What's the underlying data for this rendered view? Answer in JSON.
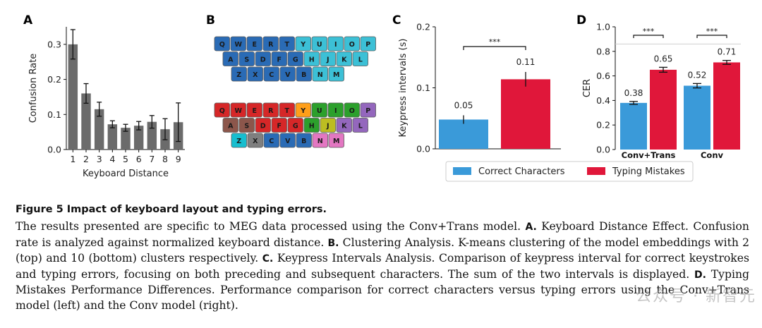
{
  "panels": {
    "a": {
      "letter": "A"
    },
    "b": {
      "letter": "B"
    },
    "c": {
      "letter": "C"
    },
    "d": {
      "letter": "D"
    }
  },
  "chart_data": [
    {
      "type": "bar",
      "panel": "A",
      "categories": [
        "1",
        "2",
        "3",
        "4",
        "5",
        "6",
        "7",
        "8",
        "9"
      ],
      "values": [
        0.3,
        0.16,
        0.115,
        0.072,
        0.062,
        0.068,
        0.079,
        0.058,
        0.078
      ],
      "errors": [
        0.042,
        0.028,
        0.02,
        0.01,
        0.01,
        0.012,
        0.018,
        0.03,
        0.055
      ],
      "xlabel": "Keyboard Distance",
      "ylabel": "Confusion Rate",
      "ylim": [
        0,
        0.35
      ],
      "yticks": [
        0.0,
        0.1,
        0.2,
        0.3
      ],
      "ytick_labels": [
        "0.0",
        "0.1",
        "0.2",
        "0.3"
      ],
      "color": "#6b6b6b",
      "grid": false
    },
    {
      "type": "bar",
      "panel": "C",
      "categories": [
        "Correct Characters",
        "Typing Mistakes"
      ],
      "values": [
        0.048,
        0.114
      ],
      "errors": [
        0.007,
        0.012
      ],
      "data_labels": [
        "0.05",
        "0.11"
      ],
      "ylabel": "Keypress intervals (s)",
      "ylim": [
        0,
        0.2
      ],
      "yticks": [
        0.0,
        0.1,
        0.2
      ],
      "ytick_labels": [
        "0.0",
        "0.1",
        "0.2"
      ],
      "colors": [
        "#3a9ad9",
        "#e0173a"
      ],
      "significance": "***",
      "grid": false
    },
    {
      "type": "bar",
      "panel": "D",
      "categories": [
        "Conv+Trans",
        "Conv"
      ],
      "series": [
        {
          "name": "Correct Characters",
          "values": [
            0.38,
            0.52
          ],
          "errors": [
            0.012,
            0.018
          ],
          "data_labels": [
            "0.38",
            "0.52"
          ],
          "color": "#3a9ad9"
        },
        {
          "name": "Typing Mistakes",
          "values": [
            0.65,
            0.71
          ],
          "errors": [
            0.02,
            0.016
          ],
          "data_labels": [
            "0.65",
            "0.71"
          ],
          "color": "#e0173a"
        }
      ],
      "ylabel": "CER",
      "ylim": [
        0,
        1.0
      ],
      "yticks": [
        0.0,
        0.2,
        0.4,
        0.6,
        0.8,
        1.0
      ],
      "ytick_labels": [
        "0.0",
        "0.2",
        "0.4",
        "0.6",
        "0.8",
        "1.0"
      ],
      "significance": [
        "***",
        "***"
      ],
      "reference_line": 0.86,
      "grid": false
    }
  ],
  "legend": {
    "placement": "bottom-center",
    "items": [
      {
        "label": "Correct Characters",
        "color": "#3a9ad9"
      },
      {
        "label": "Typing Mistakes",
        "color": "#e0173a"
      }
    ]
  },
  "keyboard": {
    "top": [
      [
        {
          "k": "Q",
          "c": "#2a6bb5"
        },
        {
          "k": "W",
          "c": "#2a6bb5"
        },
        {
          "k": "E",
          "c": "#2a6bb5"
        },
        {
          "k": "R",
          "c": "#2a6bb5"
        },
        {
          "k": "T",
          "c": "#2a6bb5"
        },
        {
          "k": "Y",
          "c": "#3cc0d6"
        },
        {
          "k": "U",
          "c": "#3cc0d6"
        },
        {
          "k": "I",
          "c": "#3cc0d6"
        },
        {
          "k": "O",
          "c": "#3cc0d6"
        },
        {
          "k": "P",
          "c": "#3cc0d6"
        }
      ],
      [
        {
          "k": "A",
          "c": "#2a6bb5"
        },
        {
          "k": "S",
          "c": "#2a6bb5"
        },
        {
          "k": "D",
          "c": "#2a6bb5"
        },
        {
          "k": "F",
          "c": "#2a6bb5"
        },
        {
          "k": "G",
          "c": "#2a6bb5"
        },
        {
          "k": "H",
          "c": "#3cc0d6"
        },
        {
          "k": "J",
          "c": "#3cc0d6"
        },
        {
          "k": "K",
          "c": "#3cc0d6"
        },
        {
          "k": "L",
          "c": "#3cc0d6"
        }
      ],
      [
        {
          "k": "Z",
          "c": "#2a6bb5"
        },
        {
          "k": "X",
          "c": "#2a6bb5"
        },
        {
          "k": "C",
          "c": "#2a6bb5"
        },
        {
          "k": "V",
          "c": "#2a6bb5"
        },
        {
          "k": "B",
          "c": "#2a6bb5"
        },
        {
          "k": "N",
          "c": "#3cc0d6"
        },
        {
          "k": "M",
          "c": "#3cc0d6"
        }
      ]
    ],
    "bottom": [
      [
        {
          "k": "Q",
          "c": "#d62728"
        },
        {
          "k": "W",
          "c": "#d62728"
        },
        {
          "k": "E",
          "c": "#d62728"
        },
        {
          "k": "R",
          "c": "#d62728"
        },
        {
          "k": "T",
          "c": "#d62728"
        },
        {
          "k": "Y",
          "c": "#ff9f1a"
        },
        {
          "k": "U",
          "c": "#2ca02c"
        },
        {
          "k": "I",
          "c": "#2ca02c"
        },
        {
          "k": "O",
          "c": "#2ca02c"
        },
        {
          "k": "P",
          "c": "#9467bd"
        }
      ],
      [
        {
          "k": "A",
          "c": "#8c564b"
        },
        {
          "k": "S",
          "c": "#8c564b"
        },
        {
          "k": "D",
          "c": "#d62728"
        },
        {
          "k": "F",
          "c": "#d62728"
        },
        {
          "k": "G",
          "c": "#d62728"
        },
        {
          "k": "H",
          "c": "#2ca02c"
        },
        {
          "k": "J",
          "c": "#bcbd22"
        },
        {
          "k": "K",
          "c": "#9467bd"
        },
        {
          "k": "L",
          "c": "#9467bd"
        }
      ],
      [
        {
          "k": "Z",
          "c": "#17becf"
        },
        {
          "k": "X",
          "c": "#7f7f7f"
        },
        {
          "k": "C",
          "c": "#2a6bb5"
        },
        {
          "k": "V",
          "c": "#2a6bb5"
        },
        {
          "k": "B",
          "c": "#2a6bb5"
        },
        {
          "k": "N",
          "c": "#e377c2"
        },
        {
          "k": "M",
          "c": "#e377c2"
        }
      ]
    ]
  },
  "caption": {
    "title": "Figure 5   Impact of keyboard layout and typing errors.",
    "intro": "The results presented are specific to MEG data processed using the Conv+Trans model.",
    "a_label": "A.",
    "a_text": "Keyboard Distance Effect. Confusion rate is analyzed against normalized keyboard distance.",
    "b_label": "B.",
    "b_text": "Clustering Analysis. K-means clustering of the model embeddings with 2 (top) and 10 (bottom) clusters respectively.",
    "c_label": "C.",
    "c_text": "Keypress Intervals Analysis. Comparison of keypress interval for correct keystrokes and typing errors, focusing on both preceding and subsequent characters. The sum of the two intervals is displayed.",
    "d_label": "D.",
    "d_text": "Typing Mistakes Performance Differences. Performance comparison for correct characters versus typing errors using the Conv+Trans model (left) and the Conv model (right)."
  },
  "watermark": "公众号 · 新智元"
}
